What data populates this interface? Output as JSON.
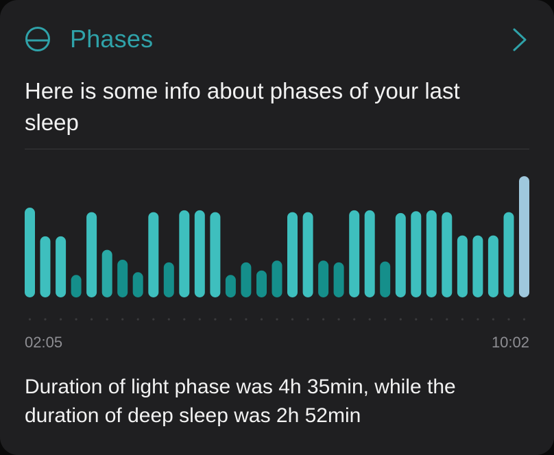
{
  "header": {
    "title": "Phases",
    "icon": "half-circle-icon",
    "chevron": "chevron-right-icon"
  },
  "subtitle": "Here is some info about phases of your last sleep",
  "chart_data": {
    "type": "bar",
    "start_time": "02:05",
    "end_time": "10:02",
    "phase_levels": [
      "light",
      "moderate",
      "deep",
      "awake"
    ],
    "colors": {
      "light": "#3ebfbe",
      "moderate": "#2aa9a6",
      "deep": "#158f8b",
      "awake": "#9fc8dd",
      "dot": "#3a3a3c"
    },
    "values": [
      {
        "level": 1.0,
        "phase": "light"
      },
      {
        "level": 0.68,
        "phase": "light"
      },
      {
        "level": 0.68,
        "phase": "light"
      },
      {
        "level": 0.25,
        "phase": "deep"
      },
      {
        "level": 0.95,
        "phase": "light"
      },
      {
        "level": 0.53,
        "phase": "moderate"
      },
      {
        "level": 0.42,
        "phase": "deep"
      },
      {
        "level": 0.28,
        "phase": "deep"
      },
      {
        "level": 0.95,
        "phase": "light"
      },
      {
        "level": 0.39,
        "phase": "deep"
      },
      {
        "level": 0.97,
        "phase": "light"
      },
      {
        "level": 0.97,
        "phase": "light"
      },
      {
        "level": 0.95,
        "phase": "light"
      },
      {
        "level": 0.25,
        "phase": "deep"
      },
      {
        "level": 0.39,
        "phase": "deep"
      },
      {
        "level": 0.3,
        "phase": "deep"
      },
      {
        "level": 0.41,
        "phase": "deep"
      },
      {
        "level": 0.95,
        "phase": "light"
      },
      {
        "level": 0.95,
        "phase": "light"
      },
      {
        "level": 0.41,
        "phase": "deep"
      },
      {
        "level": 0.39,
        "phase": "deep"
      },
      {
        "level": 0.97,
        "phase": "light"
      },
      {
        "level": 0.97,
        "phase": "light"
      },
      {
        "level": 0.4,
        "phase": "deep"
      },
      {
        "level": 0.94,
        "phase": "light"
      },
      {
        "level": 0.96,
        "phase": "light"
      },
      {
        "level": 0.97,
        "phase": "light"
      },
      {
        "level": 0.95,
        "phase": "light"
      },
      {
        "level": 0.69,
        "phase": "light"
      },
      {
        "level": 0.69,
        "phase": "light"
      },
      {
        "level": 0.69,
        "phase": "light"
      },
      {
        "level": 0.95,
        "phase": "light"
      },
      {
        "level": 1.35,
        "phase": "awake"
      }
    ]
  },
  "footer": {
    "summary": "Duration of light phase was 4h 35min, while the duration of deep sleep was 2h 52min"
  }
}
